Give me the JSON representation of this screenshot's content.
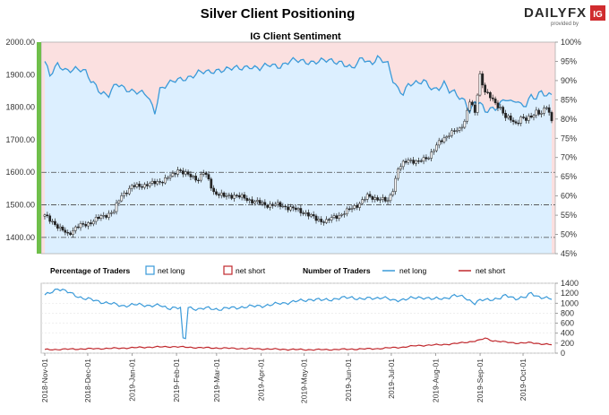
{
  "header": {
    "title": "Silver Client Positioning",
    "logo": {
      "brand_left": "DAILY",
      "brand_right": "FX",
      "tagline": "provided by",
      "badge": "IG"
    }
  },
  "chart_data": [
    {
      "type": "candlestick+line",
      "title": "IG Client Sentiment",
      "left_axis": {
        "ticks": [
          "2000.00",
          "1900.00",
          "1800.00",
          "1700.00",
          "1600.00",
          "1500.00",
          "1400.00"
        ],
        "ylim": [
          1350,
          2000
        ]
      },
      "right_axis": {
        "ticks": [
          "100%",
          "95%",
          "90%",
          "85%",
          "80%",
          "75%",
          "70%",
          "65%",
          "60%",
          "55%",
          "50%",
          "45%"
        ],
        "ylim": [
          45,
          100
        ]
      },
      "reference_lines": [
        1600,
        1500,
        1400
      ],
      "price_series": {
        "name": "Silver price",
        "keypoints": [
          [
            0,
            1465
          ],
          [
            3,
            1450
          ],
          [
            6,
            1425
          ],
          [
            9,
            1410
          ],
          [
            12,
            1430
          ],
          [
            16,
            1440
          ],
          [
            20,
            1455
          ],
          [
            24,
            1470
          ],
          [
            27,
            1480
          ],
          [
            30,
            1530
          ],
          [
            34,
            1555
          ],
          [
            38,
            1560
          ],
          [
            42,
            1565
          ],
          [
            46,
            1575
          ],
          [
            50,
            1590
          ],
          [
            52,
            1610
          ],
          [
            56,
            1590
          ],
          [
            60,
            1580
          ],
          [
            62,
            1600
          ],
          [
            64,
            1575
          ],
          [
            66,
            1540
          ],
          [
            70,
            1525
          ],
          [
            74,
            1530
          ],
          [
            78,
            1520
          ],
          [
            82,
            1510
          ],
          [
            86,
            1500
          ],
          [
            90,
            1500
          ],
          [
            94,
            1495
          ],
          [
            98,
            1485
          ],
          [
            102,
            1475
          ],
          [
            106,
            1455
          ],
          [
            110,
            1450
          ],
          [
            114,
            1465
          ],
          [
            118,
            1480
          ],
          [
            122,
            1500
          ],
          [
            126,
            1525
          ],
          [
            130,
            1520
          ],
          [
            134,
            1510
          ],
          [
            136,
            1550
          ],
          [
            138,
            1610
          ],
          [
            142,
            1640
          ],
          [
            146,
            1630
          ],
          [
            150,
            1650
          ],
          [
            154,
            1690
          ],
          [
            158,
            1720
          ],
          [
            162,
            1730
          ],
          [
            164,
            1760
          ],
          [
            166,
            1820
          ],
          [
            168,
            1780
          ],
          [
            170,
            1900
          ],
          [
            172,
            1850
          ],
          [
            174,
            1830
          ],
          [
            176,
            1810
          ],
          [
            178,
            1800
          ],
          [
            180,
            1770
          ],
          [
            182,
            1760
          ],
          [
            184,
            1750
          ],
          [
            186,
            1770
          ],
          [
            188,
            1760
          ],
          [
            190,
            1770
          ],
          [
            192,
            1790
          ],
          [
            194,
            1780
          ],
          [
            196,
            1800
          ],
          [
            198,
            1760
          ]
        ]
      },
      "sentiment_series": {
        "name": "net long %",
        "keypoints": [
          [
            0,
            95
          ],
          [
            2,
            91
          ],
          [
            5,
            94
          ],
          [
            8,
            93
          ],
          [
            12,
            93
          ],
          [
            16,
            92
          ],
          [
            18,
            90
          ],
          [
            20,
            89
          ],
          [
            22,
            87
          ],
          [
            25,
            86
          ],
          [
            28,
            89
          ],
          [
            32,
            88
          ],
          [
            36,
            87
          ],
          [
            40,
            86
          ],
          [
            43,
            82
          ],
          [
            45,
            88
          ],
          [
            48,
            89
          ],
          [
            52,
            90
          ],
          [
            56,
            91
          ],
          [
            60,
            92
          ],
          [
            64,
            92
          ],
          [
            68,
            93
          ],
          [
            72,
            93
          ],
          [
            76,
            93
          ],
          [
            80,
            94
          ],
          [
            84,
            93
          ],
          [
            88,
            94
          ],
          [
            92,
            94
          ],
          [
            96,
            95
          ],
          [
            100,
            95
          ],
          [
            104,
            95
          ],
          [
            108,
            95
          ],
          [
            112,
            95
          ],
          [
            116,
            95
          ],
          [
            118,
            94
          ],
          [
            120,
            93
          ],
          [
            122,
            94
          ],
          [
            124,
            96
          ],
          [
            126,
            95
          ],
          [
            128,
            95
          ],
          [
            130,
            96
          ],
          [
            132,
            95
          ],
          [
            134,
            94
          ],
          [
            136,
            90
          ],
          [
            138,
            88
          ],
          [
            140,
            87
          ],
          [
            142,
            89
          ],
          [
            144,
            89
          ],
          [
            146,
            89
          ],
          [
            148,
            90
          ],
          [
            150,
            89
          ],
          [
            152,
            88
          ],
          [
            154,
            88
          ],
          [
            156,
            89
          ],
          [
            158,
            87
          ],
          [
            160,
            87
          ],
          [
            162,
            86
          ],
          [
            164,
            85
          ],
          [
            166,
            82
          ],
          [
            168,
            84
          ],
          [
            170,
            84
          ],
          [
            172,
            82
          ],
          [
            174,
            83
          ],
          [
            176,
            83
          ],
          [
            178,
            84
          ],
          [
            180,
            85
          ],
          [
            182,
            84
          ],
          [
            184,
            85
          ],
          [
            186,
            84
          ],
          [
            188,
            84
          ],
          [
            190,
            86
          ],
          [
            192,
            85
          ],
          [
            194,
            87
          ],
          [
            196,
            86
          ],
          [
            198,
            87
          ]
        ]
      }
    },
    {
      "type": "line",
      "legend": [
        {
          "group": "Percentage of Traders",
          "items": [
            {
              "label": "net long",
              "color": "#3a9ad9"
            },
            {
              "label": "net short",
              "color": "#c0282d"
            }
          ]
        },
        {
          "group": "Number of Traders",
          "items": [
            {
              "label": "net long",
              "color": "#3a9ad9"
            },
            {
              "label": "net short",
              "color": "#c0282d"
            }
          ]
        }
      ],
      "right_axis": {
        "ticks": [
          "1400",
          "1200",
          "1000",
          "800",
          "600",
          "400",
          "200",
          "0"
        ],
        "ylim": [
          0,
          1400
        ]
      },
      "series": [
        {
          "name": "net long",
          "color": "#3a9ad9",
          "keypoints": [
            [
              0,
              1150
            ],
            [
              5,
              1300
            ],
            [
              10,
              1200
            ],
            [
              15,
              1100
            ],
            [
              20,
              1050
            ],
            [
              25,
              1000
            ],
            [
              30,
              950
            ],
            [
              35,
              970
            ],
            [
              40,
              960
            ],
            [
              45,
              950
            ],
            [
              48,
              900
            ],
            [
              50,
              920
            ],
            [
              53,
              900
            ],
            [
              54,
              270
            ],
            [
              55,
              300
            ],
            [
              56,
              920
            ],
            [
              60,
              880
            ],
            [
              64,
              900
            ],
            [
              68,
              880
            ],
            [
              72,
              900
            ],
            [
              76,
              920
            ],
            [
              80,
              930
            ],
            [
              84,
              950
            ],
            [
              88,
              960
            ],
            [
              92,
              1000
            ],
            [
              96,
              1020
            ],
            [
              100,
              1050
            ],
            [
              104,
              1080
            ],
            [
              108,
              1060
            ],
            [
              112,
              1080
            ],
            [
              116,
              1100
            ],
            [
              120,
              1120
            ],
            [
              124,
              1080
            ],
            [
              128,
              1100
            ],
            [
              132,
              1120
            ],
            [
              136,
              1050
            ],
            [
              140,
              1080
            ],
            [
              144,
              1100
            ],
            [
              148,
              1120
            ],
            [
              152,
              1080
            ],
            [
              156,
              1100
            ],
            [
              160,
              1150
            ],
            [
              164,
              1120
            ],
            [
              168,
              1000
            ],
            [
              170,
              1050
            ],
            [
              174,
              1080
            ],
            [
              178,
              1100
            ],
            [
              180,
              1150
            ],
            [
              184,
              1100
            ],
            [
              188,
              1120
            ],
            [
              190,
              1200
            ],
            [
              192,
              1150
            ],
            [
              196,
              1100
            ],
            [
              198,
              1080
            ]
          ]
        },
        {
          "name": "net short",
          "color": "#c0282d",
          "keypoints": [
            [
              0,
              70
            ],
            [
              10,
              80
            ],
            [
              20,
              90
            ],
            [
              30,
              100
            ],
            [
              40,
              120
            ],
            [
              50,
              130
            ],
            [
              60,
              110
            ],
            [
              70,
              100
            ],
            [
              80,
              90
            ],
            [
              90,
              80
            ],
            [
              100,
              70
            ],
            [
              110,
              70
            ],
            [
              120,
              80
            ],
            [
              130,
              90
            ],
            [
              136,
              110
            ],
            [
              140,
              120
            ],
            [
              145,
              150
            ],
            [
              150,
              160
            ],
            [
              155,
              170
            ],
            [
              160,
              190
            ],
            [
              165,
              220
            ],
            [
              170,
              260
            ],
            [
              172,
              300
            ],
            [
              175,
              250
            ],
            [
              180,
              220
            ],
            [
              185,
              200
            ],
            [
              190,
              210
            ],
            [
              195,
              180
            ],
            [
              198,
              170
            ]
          ]
        }
      ],
      "x_ticks": [
        "2018-Nov-01",
        "2018-Dec-01",
        "2019-Jan-01",
        "2019-Feb-01",
        "2019-Mar-01",
        "2019-Apr-01",
        "2019-May-01",
        "2019-Jun-01",
        "2019-Jul-01",
        "2019-Aug-01",
        "2019-Sep-01",
        "2019-Oct-01"
      ],
      "x_tick_days": [
        0,
        30,
        61,
        92,
        120,
        151,
        181,
        212,
        242,
        273,
        304,
        334
      ],
      "x_range_days": [
        0,
        354
      ]
    }
  ]
}
